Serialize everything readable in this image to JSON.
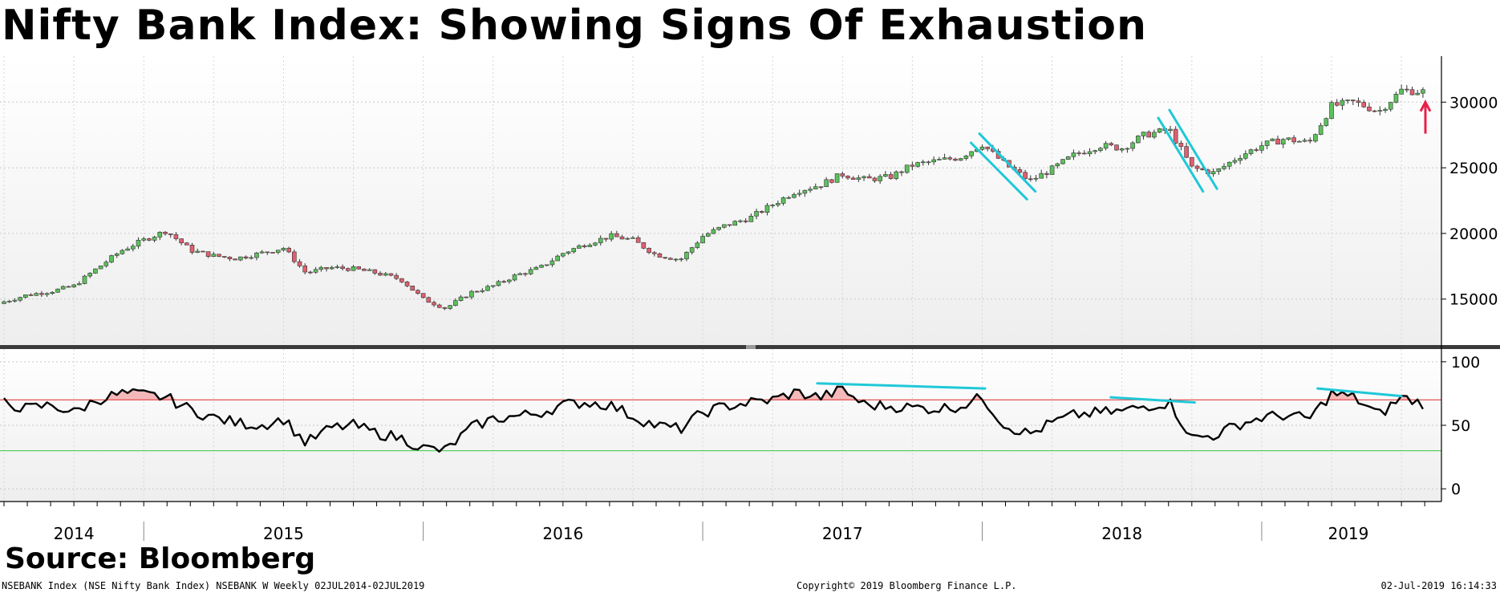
{
  "title": "Nifty Bank Index: Showing Signs Of Exhaustion",
  "source_label": "Source: Bloomberg",
  "footer": {
    "left": "NSEBANK Index (NSE Nifty Bank Index) NSEBANK W  Weekly 02JUL2014-02JUL2019",
    "center": "Copyright© 2019 Bloomberg Finance L.P.",
    "right": "02-Jul-2019 16:14:33"
  },
  "colors": {
    "up_candle": "#5cc15c",
    "down_candle": "#e06070",
    "rsi_line": "#000000",
    "overbought_line": "#e04040",
    "oversold_line": "#4cc94c",
    "overbought_fill": "#f4b8b8",
    "trendline": "#1fc8d8",
    "arrow": "#e8204a"
  },
  "chart_data": [
    {
      "type": "candlestick",
      "frequency": "weekly",
      "series_name": "NSEBANK Index",
      "x_axis": {
        "labels": [
          "2014",
          "2015",
          "2016",
          "2017",
          "2018",
          "2019"
        ]
      },
      "y_axis": {
        "ticks": [
          15000,
          20000,
          25000,
          30000
        ],
        "ylim": [
          11500,
          33500
        ],
        "position": "right"
      },
      "monthly_close": [
        [
          2014.5,
          14800
        ],
        [
          2014.58,
          15300
        ],
        [
          2014.67,
          15600
        ],
        [
          2014.75,
          16000
        ],
        [
          2014.83,
          17300
        ],
        [
          2014.92,
          18700
        ],
        [
          2015.0,
          19500
        ],
        [
          2015.08,
          20200
        ],
        [
          2015.17,
          18700
        ],
        [
          2015.25,
          18300
        ],
        [
          2015.33,
          18100
        ],
        [
          2015.42,
          18500
        ],
        [
          2015.5,
          18900
        ],
        [
          2015.58,
          17000
        ],
        [
          2015.67,
          17400
        ],
        [
          2015.75,
          17300
        ],
        [
          2015.83,
          17000
        ],
        [
          2015.92,
          16500
        ],
        [
          2016.0,
          15000
        ],
        [
          2016.08,
          14300
        ],
        [
          2016.17,
          15500
        ],
        [
          2016.25,
          16000
        ],
        [
          2016.33,
          16800
        ],
        [
          2016.42,
          17400
        ],
        [
          2016.5,
          18500
        ],
        [
          2016.58,
          19200
        ],
        [
          2016.67,
          19800
        ],
        [
          2016.75,
          19500
        ],
        [
          2016.83,
          18400
        ],
        [
          2016.92,
          18000
        ],
        [
          2017.0,
          19800
        ],
        [
          2017.08,
          20600
        ],
        [
          2017.17,
          21200
        ],
        [
          2017.25,
          22200
        ],
        [
          2017.33,
          23200
        ],
        [
          2017.42,
          23700
        ],
        [
          2017.5,
          24500
        ],
        [
          2017.58,
          24100
        ],
        [
          2017.67,
          24300
        ],
        [
          2017.75,
          25200
        ],
        [
          2017.83,
          25500
        ],
        [
          2017.92,
          25800
        ],
        [
          2018.0,
          26800
        ],
        [
          2018.08,
          25300
        ],
        [
          2018.17,
          24000
        ],
        [
          2018.25,
          24900
        ],
        [
          2018.33,
          26000
        ],
        [
          2018.42,
          26700
        ],
        [
          2018.5,
          26500
        ],
        [
          2018.58,
          27500
        ],
        [
          2018.67,
          27900
        ],
        [
          2018.75,
          25000
        ],
        [
          2018.83,
          24600
        ],
        [
          2018.92,
          25900
        ],
        [
          2019.0,
          26700
        ],
        [
          2019.08,
          27200
        ],
        [
          2019.17,
          26900
        ],
        [
          2019.25,
          29700
        ],
        [
          2019.33,
          30000
        ],
        [
          2019.42,
          29300
        ],
        [
          2019.5,
          30900
        ],
        [
          2019.58,
          30800
        ]
      ]
    },
    {
      "type": "line",
      "series_name": "RSI",
      "y_axis": {
        "ticks": [
          0,
          50,
          100
        ],
        "ylim": [
          -10,
          110
        ],
        "position": "right"
      },
      "reference_lines": [
        70,
        30
      ],
      "monthly_values": [
        [
          2014.5,
          68
        ],
        [
          2014.58,
          63
        ],
        [
          2014.67,
          66
        ],
        [
          2014.75,
          60
        ],
        [
          2014.83,
          70
        ],
        [
          2014.92,
          75
        ],
        [
          2015.0,
          74
        ],
        [
          2015.08,
          72
        ],
        [
          2015.17,
          62
        ],
        [
          2015.25,
          56
        ],
        [
          2015.33,
          52
        ],
        [
          2015.42,
          50
        ],
        [
          2015.5,
          55
        ],
        [
          2015.58,
          36
        ],
        [
          2015.67,
          48
        ],
        [
          2015.75,
          50
        ],
        [
          2015.83,
          44
        ],
        [
          2015.92,
          40
        ],
        [
          2016.0,
          32
        ],
        [
          2016.08,
          30
        ],
        [
          2016.17,
          48
        ],
        [
          2016.25,
          55
        ],
        [
          2016.33,
          57
        ],
        [
          2016.42,
          60
        ],
        [
          2016.5,
          66
        ],
        [
          2016.58,
          68
        ],
        [
          2016.67,
          66
        ],
        [
          2016.75,
          57
        ],
        [
          2016.83,
          50
        ],
        [
          2016.92,
          47
        ],
        [
          2017.0,
          60
        ],
        [
          2017.08,
          65
        ],
        [
          2017.17,
          68
        ],
        [
          2017.25,
          70
        ],
        [
          2017.33,
          76
        ],
        [
          2017.42,
          72
        ],
        [
          2017.5,
          78
        ],
        [
          2017.58,
          66
        ],
        [
          2017.67,
          65
        ],
        [
          2017.75,
          64
        ],
        [
          2017.83,
          63
        ],
        [
          2017.92,
          65
        ],
        [
          2018.0,
          72
        ],
        [
          2018.08,
          50
        ],
        [
          2018.17,
          43
        ],
        [
          2018.25,
          52
        ],
        [
          2018.33,
          58
        ],
        [
          2018.42,
          60
        ],
        [
          2018.5,
          61
        ],
        [
          2018.58,
          65
        ],
        [
          2018.67,
          68
        ],
        [
          2018.75,
          40
        ],
        [
          2018.83,
          42
        ],
        [
          2018.92,
          51
        ],
        [
          2019.0,
          56
        ],
        [
          2019.08,
          58
        ],
        [
          2019.17,
          55
        ],
        [
          2019.25,
          75
        ],
        [
          2019.33,
          72
        ],
        [
          2019.42,
          58
        ],
        [
          2019.5,
          72
        ],
        [
          2019.58,
          67
        ]
      ]
    }
  ]
}
